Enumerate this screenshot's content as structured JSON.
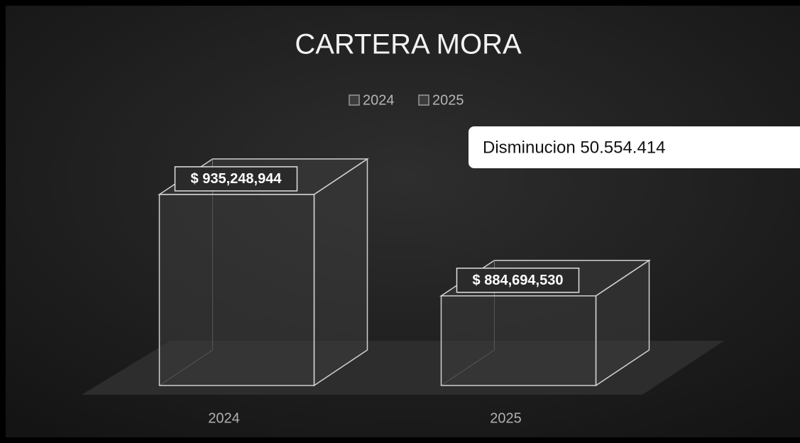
{
  "chart_data": {
    "type": "bar3d",
    "title": "CARTERA MORA",
    "categories": [
      "2024",
      "2025"
    ],
    "series": [
      {
        "name": "2024",
        "color": "#3c3c3c",
        "values": [
          935248944,
          null
        ],
        "value_labels": [
          "$ 935,248,944",
          null
        ]
      },
      {
        "name": "2025",
        "color": "#3c3c3c",
        "values": [
          null,
          884694530
        ],
        "value_labels": [
          null,
          "$ 884,694,530"
        ]
      }
    ],
    "ylim": [
      840000000,
      960000000
    ],
    "annotation": "Disminucion 50.554.414"
  }
}
